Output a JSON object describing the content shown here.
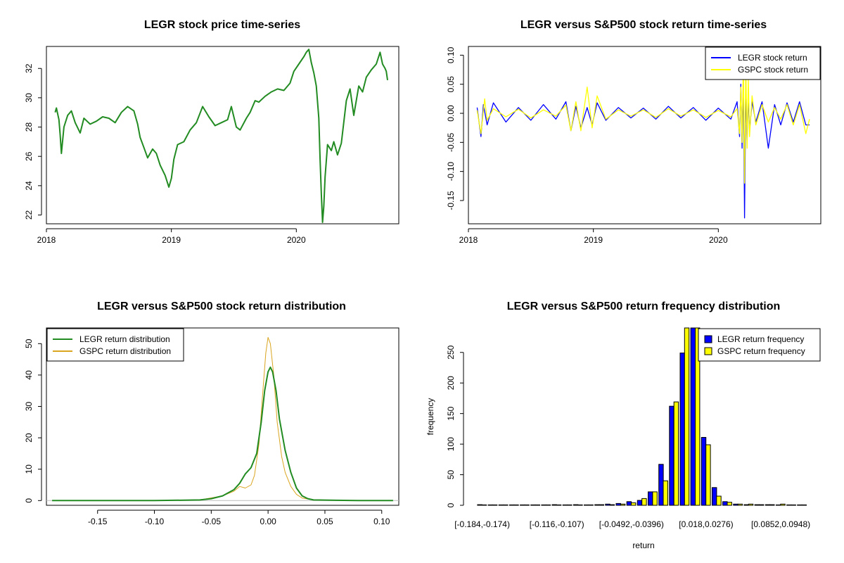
{
  "colors": {
    "price": "#228b22",
    "legr_return": "#0000ff",
    "gspc_return": "#ffff00",
    "legr_density": "#228b22",
    "gspc_density": "#daa520",
    "zero_line": "#bebebe",
    "hist_legr": "#0000ff",
    "hist_gspc": "#ffff00"
  },
  "chart_data": [
    {
      "id": "price",
      "type": "line",
      "title": "LEGR stock price time-series",
      "xlabel": "",
      "ylabel": "",
      "xlim": [
        2018.0,
        2020.82
      ],
      "ylim": [
        21.4,
        33.5
      ],
      "x_ticks": [
        2018,
        2019,
        2020
      ],
      "x_tick_labels": [
        "2018",
        "2019",
        "2020"
      ],
      "y_ticks": [
        22,
        24,
        26,
        28,
        30,
        32
      ],
      "y_tick_labels": [
        "22",
        "24",
        "26",
        "28",
        "30",
        "32"
      ],
      "series": [
        {
          "name": "LEGR price",
          "x": [
            2018.07,
            2018.08,
            2018.1,
            2018.11,
            2018.12,
            2018.14,
            2018.17,
            2018.2,
            2018.23,
            2018.27,
            2018.3,
            2018.35,
            2018.4,
            2018.45,
            2018.5,
            2018.55,
            2018.6,
            2018.65,
            2018.7,
            2018.73,
            2018.75,
            2018.78,
            2018.81,
            2018.85,
            2018.88,
            2018.91,
            2018.95,
            2018.98,
            2019.0,
            2019.02,
            2019.05,
            2019.1,
            2019.15,
            2019.2,
            2019.25,
            2019.3,
            2019.35,
            2019.4,
            2019.45,
            2019.48,
            2019.52,
            2019.55,
            2019.6,
            2019.63,
            2019.67,
            2019.7,
            2019.75,
            2019.8,
            2019.85,
            2019.9,
            2019.95,
            2019.98,
            2020.02,
            2020.06,
            2020.08,
            2020.1,
            2020.12,
            2020.14,
            2020.16,
            2020.18,
            2020.19,
            2020.2,
            2020.21,
            2020.22,
            2020.23,
            2020.25,
            2020.28,
            2020.3,
            2020.33,
            2020.36,
            2020.4,
            2020.43,
            2020.46,
            2020.5,
            2020.53,
            2020.56,
            2020.6,
            2020.64,
            2020.67,
            2020.69,
            2020.71,
            2020.72,
            2020.73
          ],
          "values": [
            29.0,
            29.3,
            28.5,
            27.5,
            26.2,
            28.0,
            28.8,
            29.1,
            28.3,
            27.6,
            28.6,
            28.2,
            28.4,
            28.7,
            28.6,
            28.3,
            29.0,
            29.4,
            29.1,
            28.2,
            27.3,
            26.6,
            25.9,
            26.5,
            26.2,
            25.4,
            24.7,
            23.9,
            24.5,
            25.8,
            26.8,
            27.0,
            27.8,
            28.3,
            29.4,
            28.7,
            28.1,
            28.3,
            28.5,
            29.4,
            28.0,
            27.8,
            28.6,
            29.0,
            29.8,
            29.7,
            30.1,
            30.4,
            30.6,
            30.5,
            31.0,
            31.8,
            32.3,
            32.8,
            33.1,
            33.3,
            32.4,
            31.7,
            30.8,
            28.6,
            25.8,
            23.4,
            21.5,
            22.6,
            24.6,
            26.8,
            26.4,
            27.0,
            26.1,
            26.9,
            29.8,
            30.6,
            28.8,
            30.8,
            30.4,
            31.4,
            31.9,
            32.3,
            33.1,
            32.3,
            32.0,
            31.8,
            31.2
          ]
        }
      ]
    },
    {
      "id": "returns",
      "type": "line",
      "title": "LEGR versus S&P500 stock return time-series",
      "xlabel": "",
      "ylabel": "",
      "xlim": [
        2018.0,
        2020.82
      ],
      "ylim": [
        -0.19,
        0.115
      ],
      "x_ticks": [
        2018,
        2019,
        2020
      ],
      "x_tick_labels": [
        "2018",
        "2019",
        "2020"
      ],
      "y_ticks": [
        -0.15,
        -0.1,
        -0.05,
        0.0,
        0.05,
        0.1
      ],
      "y_tick_labels": [
        "-0.15",
        "-0.10",
        "-0.05",
        "0.00",
        "0.05",
        "0.10"
      ],
      "legend": {
        "position": "top-right",
        "entries": [
          "LEGR stock return",
          "GSPC stock return"
        ]
      },
      "series": [
        {
          "name": "LEGR stock return",
          "x": [
            2018.07,
            2018.1,
            2018.12,
            2018.15,
            2018.2,
            2018.3,
            2018.4,
            2018.5,
            2018.6,
            2018.7,
            2018.78,
            2018.82,
            2018.86,
            2018.9,
            2018.95,
            2018.99,
            2019.03,
            2019.1,
            2019.2,
            2019.3,
            2019.4,
            2019.5,
            2019.6,
            2019.7,
            2019.8,
            2019.9,
            2020.0,
            2020.1,
            2020.15,
            2020.17,
            2020.18,
            2020.19,
            2020.2,
            2020.21,
            2020.22,
            2020.23,
            2020.24,
            2020.25,
            2020.27,
            2020.3,
            2020.35,
            2020.4,
            2020.45,
            2020.5,
            2020.55,
            2020.6,
            2020.65,
            2020.7,
            2020.73
          ],
          "values": [
            0.01,
            -0.04,
            0.015,
            -0.02,
            0.018,
            -0.015,
            0.01,
            -0.012,
            0.015,
            -0.01,
            0.02,
            -0.03,
            0.012,
            -0.025,
            0.01,
            -0.02,
            0.018,
            -0.012,
            0.01,
            -0.008,
            0.009,
            -0.01,
            0.012,
            -0.008,
            0.01,
            -0.012,
            0.009,
            -0.01,
            0.02,
            -0.04,
            0.05,
            -0.06,
            0.06,
            -0.18,
            0.05,
            -0.05,
            0.03,
            -0.03,
            0.02,
            -0.015,
            0.02,
            -0.06,
            0.015,
            -0.02,
            0.018,
            -0.015,
            0.02,
            -0.02,
            -0.02
          ]
        },
        {
          "name": "GSPC stock return",
          "x": [
            2018.07,
            2018.1,
            2018.13,
            2018.15,
            2018.2,
            2018.3,
            2018.4,
            2018.5,
            2018.6,
            2018.7,
            2018.78,
            2018.82,
            2018.86,
            2018.9,
            2018.95,
            2018.99,
            2019.03,
            2019.1,
            2019.2,
            2019.3,
            2019.4,
            2019.5,
            2019.6,
            2019.7,
            2019.8,
            2019.9,
            2020.0,
            2020.1,
            2020.15,
            2020.17,
            2020.18,
            2020.19,
            2020.2,
            2020.21,
            2020.22,
            2020.23,
            2020.24,
            2020.25,
            2020.27,
            2020.3,
            2020.35,
            2020.4,
            2020.45,
            2020.5,
            2020.55,
            2020.6,
            2020.65,
            2020.7,
            2020.73
          ],
          "values": [
            0.005,
            -0.035,
            0.025,
            -0.012,
            0.008,
            -0.006,
            0.007,
            -0.008,
            0.006,
            -0.005,
            0.014,
            -0.03,
            0.02,
            -0.03,
            0.045,
            -0.025,
            0.03,
            -0.01,
            0.006,
            -0.005,
            0.006,
            -0.007,
            0.008,
            -0.005,
            0.006,
            -0.007,
            0.005,
            -0.006,
            0.008,
            -0.035,
            0.045,
            -0.05,
            0.09,
            -0.12,
            0.09,
            -0.06,
            0.06,
            -0.04,
            0.03,
            -0.02,
            0.015,
            -0.015,
            0.01,
            -0.01,
            0.015,
            -0.02,
            0.015,
            -0.035,
            -0.01
          ]
        }
      ]
    },
    {
      "id": "density",
      "type": "line",
      "title": "LEGR versus S&P500 stock return distribution",
      "xlabel": "",
      "ylabel": "",
      "xlim": [
        -0.195,
        0.115
      ],
      "ylim": [
        -1.5,
        55
      ],
      "x_ticks": [
        -0.15,
        -0.1,
        -0.05,
        0.0,
        0.05,
        0.1
      ],
      "x_tick_labels": [
        "-0.15",
        "-0.10",
        "-0.05",
        "0.00",
        "0.05",
        "0.10"
      ],
      "y_ticks": [
        0,
        10,
        20,
        30,
        40,
        50
      ],
      "y_tick_labels": [
        "0",
        "10",
        "20",
        "30",
        "40",
        "50"
      ],
      "legend": {
        "position": "top-left",
        "entries": [
          "LEGR return distribution",
          "GSPC return distribution"
        ]
      },
      "series": [
        {
          "name": "LEGR return distribution",
          "x": [
            -0.19,
            -0.1,
            -0.06,
            -0.05,
            -0.04,
            -0.03,
            -0.025,
            -0.02,
            -0.015,
            -0.01,
            -0.006,
            -0.003,
            0.0,
            0.002,
            0.004,
            0.007,
            0.01,
            0.015,
            0.02,
            0.025,
            0.03,
            0.035,
            0.04,
            0.06,
            0.08,
            0.11
          ],
          "values": [
            0,
            0,
            0.2,
            0.6,
            1.5,
            3.5,
            5.5,
            8.5,
            10.5,
            15,
            25,
            35,
            41,
            42.5,
            41,
            35,
            26,
            16,
            9,
            4,
            1.5,
            0.6,
            0.2,
            0.1,
            0,
            0
          ]
        },
        {
          "name": "GSPC return distribution",
          "x": [
            -0.13,
            -0.1,
            -0.06,
            -0.04,
            -0.03,
            -0.025,
            -0.02,
            -0.015,
            -0.012,
            -0.008,
            -0.005,
            -0.002,
            0.0,
            0.002,
            0.005,
            0.008,
            0.012,
            0.015,
            0.02,
            0.025,
            0.03,
            0.04,
            0.06,
            0.09
          ],
          "values": [
            0,
            0,
            0.2,
            1.5,
            3,
            4.5,
            4,
            5,
            8,
            18,
            33,
            47,
            52,
            50,
            40,
            25,
            14,
            9,
            4.5,
            2,
            0.8,
            0.2,
            0.1,
            0
          ]
        }
      ]
    },
    {
      "id": "histogram",
      "type": "bar",
      "title": "LEGR versus S&P500 return frequency distribution",
      "xlabel": "return",
      "ylabel": "frequency",
      "ylim": [
        0,
        290
      ],
      "y_ticks": [
        0,
        50,
        100,
        150,
        200,
        250
      ],
      "y_tick_labels": [
        "0",
        "50",
        "100",
        "150",
        "200",
        "250"
      ],
      "categories": [
        "[-0.184,-0.174)",
        "[-0.174,-0.165)",
        "[-0.165,-0.155)",
        "[-0.155,-0.145)",
        "[-0.145,-0.136)",
        "[-0.136,-0.126)",
        "[-0.126,-0.116)",
        "[-0.116,-0.107)",
        "[-0.107,-0.0973)",
        "[-0.0973,-0.0877)",
        "[-0.0877,-0.078)",
        "[-0.078,-0.0684)",
        "[-0.0684,-0.0588)",
        "[-0.0588,-0.0492)",
        "[-0.0492,-0.0396)",
        "[-0.0396,-0.0299)",
        "[-0.0299,-0.0203)",
        "[-0.0203,-0.0107)",
        "[-0.0107,-0.00106)",
        "[-0.00106,0.00855)",
        "[0.00855,0.018)",
        "[0.018,0.0276)",
        "[0.0276,0.0372)",
        "[0.0372,0.0468)",
        "[0.0468,0.0564)",
        "[0.0564,0.066)",
        "[0.066,0.0756)",
        "[0.0756,0.0852)",
        "[0.0852,0.0948)",
        "[0.0948,0.104)",
        "[0.104,0.114)"
      ],
      "visible_category_labels": [
        "[-0.184,-0.174)",
        "[-0.116,-0.107)",
        "[-0.0492,-0.0396)",
        "[0.018,0.0276)",
        "[0.0852,0.0948)"
      ],
      "visible_label_indices": [
        0,
        7,
        14,
        21,
        28
      ],
      "legend": {
        "position": "top-right",
        "entries": [
          "LEGR return frequency",
          "GSPC return frequency"
        ]
      },
      "series": [
        {
          "name": "LEGR return frequency",
          "values": [
            1,
            0,
            0,
            0,
            0,
            0,
            0,
            1,
            0,
            1,
            0,
            1,
            2,
            3,
            6,
            8,
            22,
            67,
            162,
            249,
            290,
            111,
            29,
            6,
            2,
            1,
            1,
            1,
            0,
            0,
            0
          ]
        },
        {
          "name": "GSPC return frequency",
          "values": [
            0,
            0,
            0,
            0,
            0,
            0,
            0,
            0,
            0,
            0,
            0,
            1,
            1,
            2,
            4,
            11,
            22,
            40,
            169,
            290,
            290,
            99,
            15,
            5,
            2,
            2,
            1,
            1,
            2,
            0,
            0
          ]
        }
      ]
    }
  ]
}
